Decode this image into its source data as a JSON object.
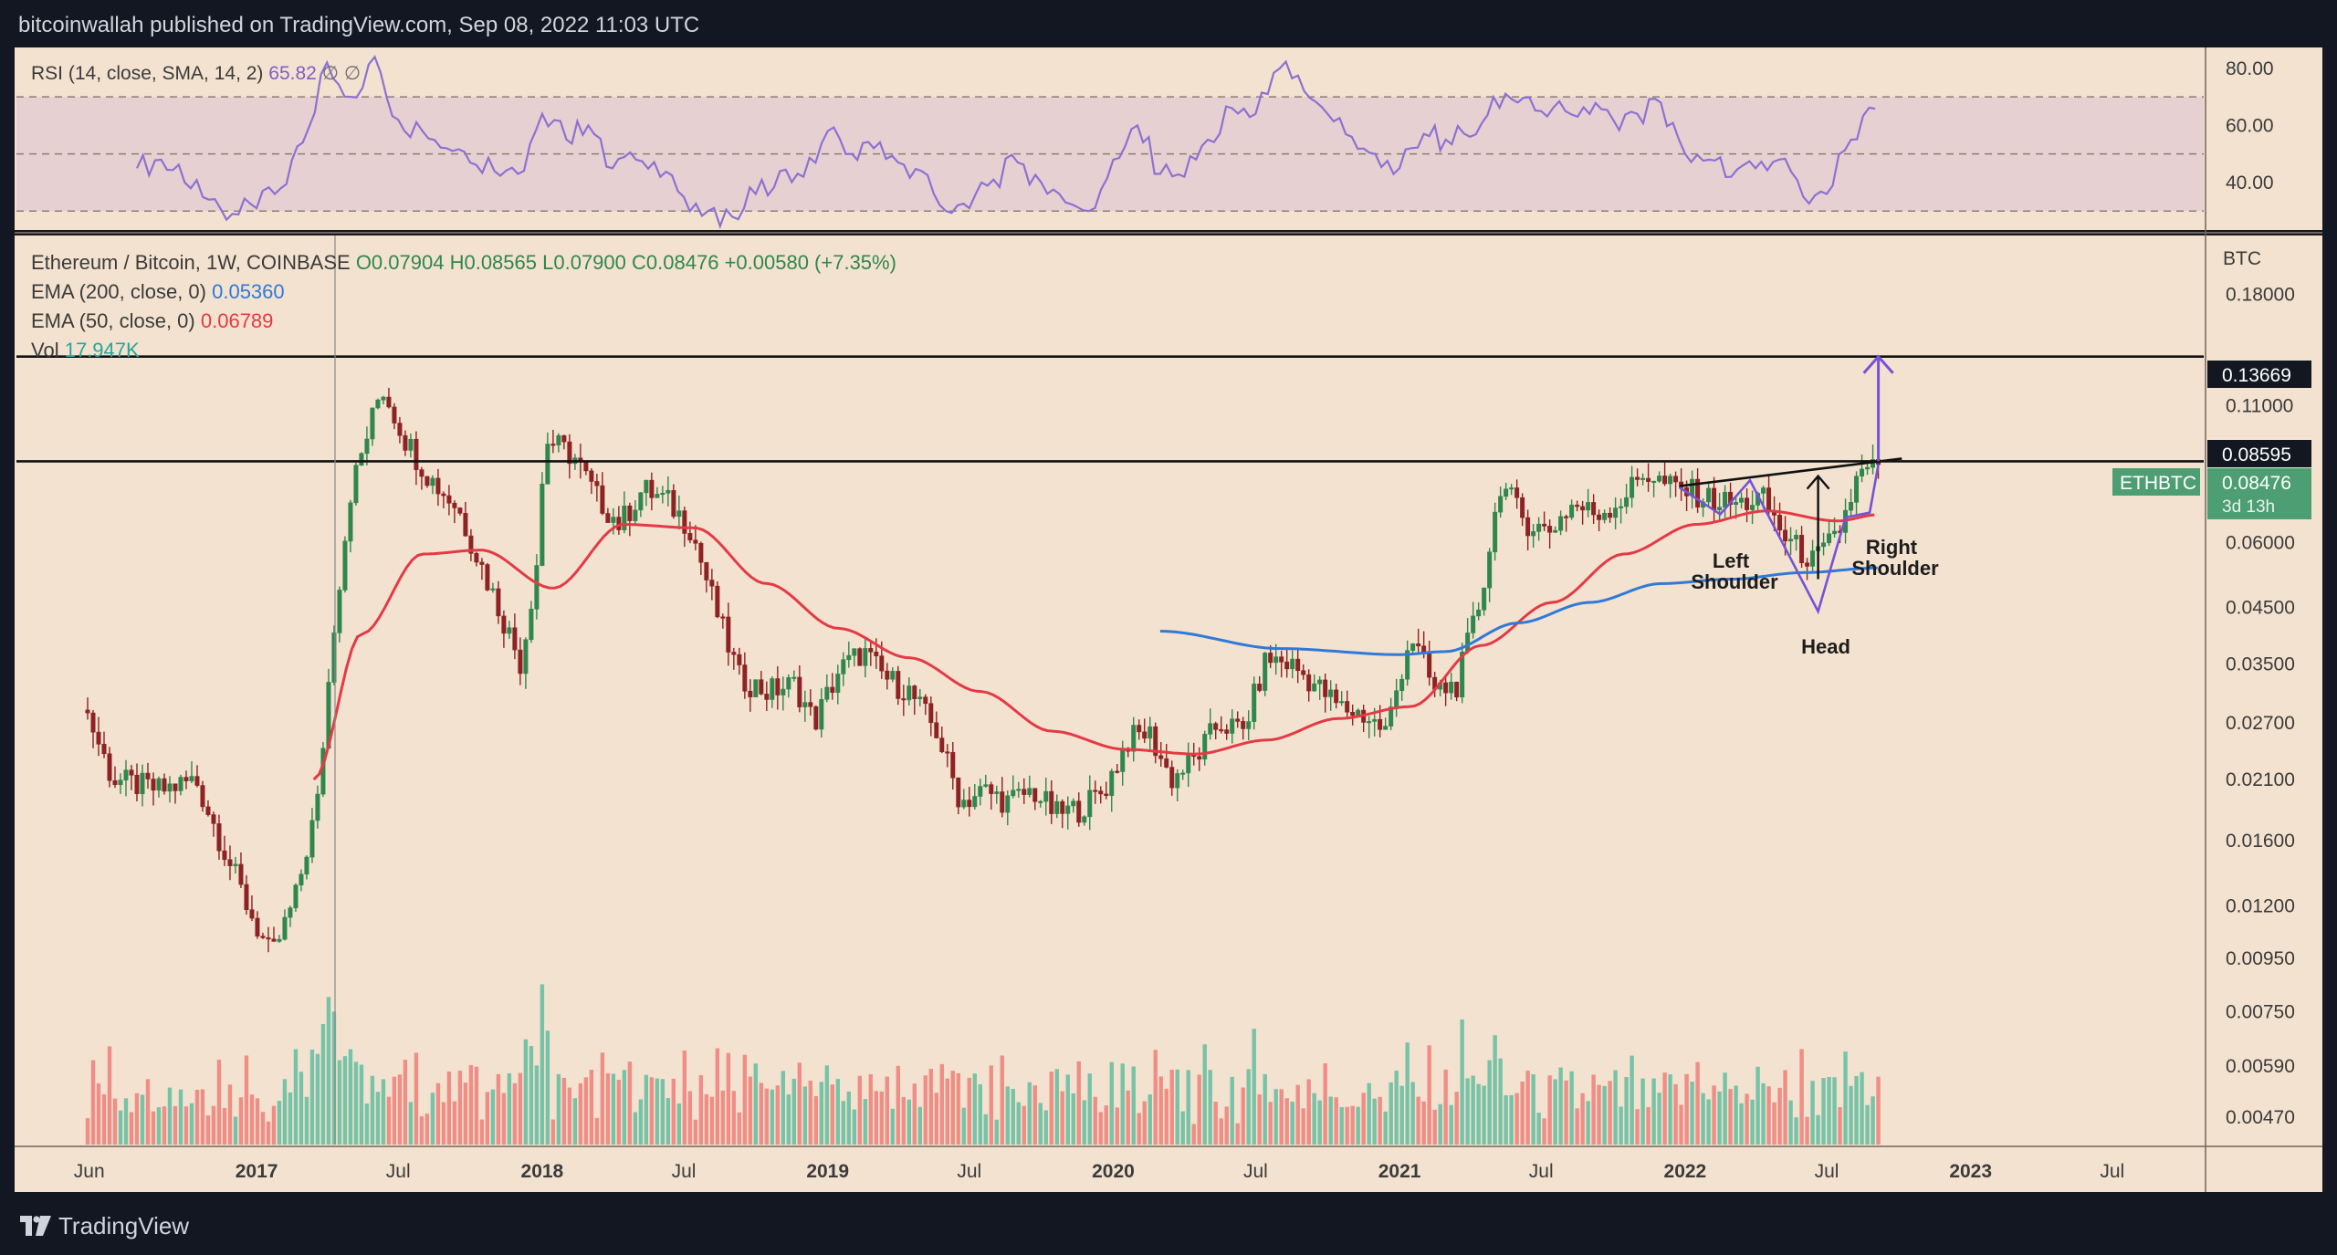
{
  "publisher": "bitcoinwallah published on TradingView.com, Sep 08, 2022 11:03 UTC",
  "footer": {
    "brand": "TradingView",
    "icon": "tradingview-logo-icon"
  },
  "colors": {
    "chart_bg": "#f3e2cf",
    "frame": "#131722",
    "candle_up": "#30874d",
    "candle_down": "#8e2323",
    "vol_up": "#77c3a8",
    "vol_down": "#ef8e86",
    "ema200": "#2f7ad8",
    "ema50": "#e43a46",
    "rsi_line": "#8b72d2",
    "rsi_band": "#e7d0d1",
    "pattern": "#7552d6",
    "tag_green": "#4e9e73"
  },
  "chart_data": [
    {
      "type": "line",
      "panel": "RSI",
      "legend": {
        "title": "RSI (14, close, SMA, 14, 2)",
        "value": "65.82",
        "extra": "∅ ∅"
      },
      "y_ticks": [
        "80.00",
        "60.00",
        "40.00"
      ],
      "ylim": [
        24,
        86
      ],
      "band": [
        30,
        70
      ],
      "grid": false,
      "series": [
        {
          "x": [
            "2016-08-01",
            "2016-09-01",
            "2016-10-01",
            "2016-11-01",
            "2016-12-01",
            "2017-01-01",
            "2017-02-01",
            "2017-03-01",
            "2017-04-01",
            "2017-05-01",
            "2017-06-01",
            "2017-07-01",
            "2017-08-01",
            "2017-09-01",
            "2017-10-01",
            "2017-11-01",
            "2017-12-01",
            "2018-01-01",
            "2018-02-01",
            "2018-03-01",
            "2018-04-01",
            "2018-05-01",
            "2018-06-01",
            "2018-07-01",
            "2018-08-01",
            "2018-09-01",
            "2018-10-01",
            "2018-11-01",
            "2018-12-01",
            "2019-01-01",
            "2019-02-01",
            "2019-03-01",
            "2019-04-01",
            "2019-05-01",
            "2019-06-01",
            "2019-07-01",
            "2019-08-01",
            "2019-09-01",
            "2019-10-01",
            "2019-11-01",
            "2019-12-01",
            "2020-01-01",
            "2020-02-01",
            "2020-03-01",
            "2020-04-01",
            "2020-05-01",
            "2020-06-01",
            "2020-07-01",
            "2020-08-01",
            "2020-09-01",
            "2020-10-01",
            "2020-11-01",
            "2020-12-01",
            "2021-01-01",
            "2021-02-01",
            "2021-03-01",
            "2021-04-01",
            "2021-05-01",
            "2021-06-01",
            "2021-07-01",
            "2021-08-01",
            "2021-09-01",
            "2021-10-01",
            "2021-11-01",
            "2021-12-01",
            "2022-01-01",
            "2022-02-01",
            "2022-03-01",
            "2022-04-01",
            "2022-05-01",
            "2022-06-01",
            "2022-07-01",
            "2022-08-01",
            "2022-09-01"
          ],
          "values": [
            45,
            48,
            40,
            34,
            29,
            31,
            38,
            54,
            82,
            70,
            84,
            62,
            58,
            52,
            47,
            44,
            43,
            64,
            55,
            60,
            45,
            48,
            42,
            35,
            30,
            28,
            36,
            44,
            42,
            58,
            50,
            52,
            47,
            44,
            30,
            31,
            41,
            47,
            40,
            33,
            30,
            48,
            60,
            43,
            42,
            55,
            66,
            64,
            80,
            72,
            64,
            56,
            50,
            45,
            57,
            55,
            56,
            70,
            68,
            65,
            65,
            64,
            62,
            64,
            68,
            50,
            48,
            42,
            45,
            48,
            35,
            36,
            55,
            65.82
          ]
        }
      ]
    },
    {
      "type": "candlestick",
      "panel": "Price",
      "title": "Ethereum / Bitcoin, 1W, COINBASE",
      "ohlc_label": {
        "open": "O0.07904",
        "high": "H0.08565",
        "low": "L0.07900",
        "close": "C0.08476",
        "change": "+0.00580 (+7.35%)"
      },
      "scale": "log",
      "ylabel": "BTC",
      "ylim": [
        0.0042,
        0.23
      ],
      "y_ticks": [
        "0.18000",
        "0.11000",
        "0.06000",
        "0.04500",
        "0.03500",
        "0.02700",
        "0.02100",
        "0.01600",
        "0.01200",
        "0.00950",
        "0.00750",
        "0.00590",
        "0.00470"
      ],
      "x_ticks": [
        "Jun",
        "2017",
        "Jul",
        "2018",
        "Jul",
        "2019",
        "Jul",
        "2020",
        "Jul",
        "2021",
        "Jul",
        "2022",
        "Jul",
        "2023",
        "Jul"
      ],
      "bold_x_ticks": [
        "2017",
        "2018",
        "2019",
        "2020",
        "2021",
        "2022",
        "2023"
      ],
      "legend_placement": "top-left",
      "indicators": [
        {
          "name": "EMA (200, close, 0)",
          "value": "0.05360",
          "color": "#2f7ad8"
        },
        {
          "name": "EMA (50, close, 0)",
          "value": "0.06789",
          "color": "#e43a46"
        },
        {
          "name": "Vol",
          "value": "17.947K",
          "color": "#26a69a"
        }
      ],
      "price_tags": [
        {
          "label": "0.13669",
          "style": "horizontal-line"
        },
        {
          "label": "0.08595",
          "style": "horizontal-line"
        },
        {
          "label": "0.08476",
          "symbol": "ETHBTC",
          "countdown": "3d 13h",
          "style": "last-price"
        }
      ],
      "horizontal_lines": [
        0.13669,
        0.08595
      ],
      "annotations": [
        "Left Shoulder",
        "Head",
        "Right Shoulder"
      ],
      "close_path": {
        "x": [
          "2016-05-30",
          "2016-07-01",
          "2016-09-01",
          "2016-10-15",
          "2016-12-20",
          "2017-01-20",
          "2017-02-20",
          "2017-03-20",
          "2017-04-10",
          "2017-05-01",
          "2017-06-10",
          "2017-07-10",
          "2017-08-10",
          "2017-09-15",
          "2017-10-20",
          "2017-11-20",
          "2017-12-05",
          "2017-12-25",
          "2018-01-05",
          "2018-02-10",
          "2018-03-10",
          "2018-04-10",
          "2018-05-10",
          "2018-06-10",
          "2018-07-10",
          "2018-08-10",
          "2018-09-10",
          "2018-10-15",
          "2018-11-20",
          "2018-12-15",
          "2019-01-15",
          "2019-02-15",
          "2019-03-15",
          "2019-04-15",
          "2019-05-20",
          "2019-06-20",
          "2019-07-20",
          "2019-08-20",
          "2019-09-20",
          "2019-10-20",
          "2019-11-20",
          "2019-12-20",
          "2020-01-20",
          "2020-02-15",
          "2020-03-15",
          "2020-04-15",
          "2020-05-15",
          "2020-06-15",
          "2020-07-15",
          "2020-08-15",
          "2020-09-15",
          "2020-10-15",
          "2020-11-15",
          "2020-12-15",
          "2021-01-15",
          "2021-02-15",
          "2021-03-15",
          "2021-04-15",
          "2021-05-10",
          "2021-06-10",
          "2021-07-10",
          "2021-08-10",
          "2021-09-10",
          "2021-10-10",
          "2021-11-10",
          "2021-12-10",
          "2022-01-10",
          "2022-02-10",
          "2022-03-10",
          "2022-04-10",
          "2022-05-10",
          "2022-06-15",
          "2022-07-15",
          "2022-08-10",
          "2022-09-05"
        ],
        "values": [
          0.028,
          0.021,
          0.02,
          0.021,
          0.012,
          0.0095,
          0.0125,
          0.019,
          0.042,
          0.075,
          0.12,
          0.095,
          0.08,
          0.07,
          0.052,
          0.04,
          0.035,
          0.055,
          0.095,
          0.088,
          0.074,
          0.065,
          0.076,
          0.072,
          0.064,
          0.045,
          0.033,
          0.031,
          0.032,
          0.027,
          0.034,
          0.037,
          0.033,
          0.031,
          0.026,
          0.019,
          0.02,
          0.019,
          0.02,
          0.018,
          0.0185,
          0.02,
          0.025,
          0.026,
          0.021,
          0.023,
          0.027,
          0.026,
          0.036,
          0.035,
          0.032,
          0.029,
          0.028,
          0.026,
          0.04,
          0.031,
          0.032,
          0.047,
          0.078,
          0.066,
          0.063,
          0.071,
          0.068,
          0.072,
          0.082,
          0.077,
          0.075,
          0.072,
          0.071,
          0.073,
          0.061,
          0.055,
          0.062,
          0.08,
          0.08476
        ]
      },
      "ema200": {
        "x": [
          "2020-03-01",
          "2020-08-01",
          "2021-01-01",
          "2021-03-01",
          "2021-06-01",
          "2021-09-01",
          "2021-12-01",
          "2022-03-01",
          "2022-06-01",
          "2022-09-05"
        ],
        "values": [
          0.0405,
          0.0375,
          0.0365,
          0.037,
          0.042,
          0.046,
          0.05,
          0.051,
          0.0525,
          0.0536
        ]
      },
      "ema50": {
        "x": [
          "2017-03-15",
          "2017-05-15",
          "2017-08-01",
          "2017-10-15",
          "2018-01-15",
          "2018-04-15",
          "2018-07-15",
          "2018-10-15",
          "2019-01-15",
          "2019-04-15",
          "2019-07-15",
          "2019-10-15",
          "2020-01-15",
          "2020-04-15",
          "2020-07-15",
          "2020-10-15",
          "2021-01-15",
          "2021-04-15",
          "2021-07-15",
          "2021-10-15",
          "2022-01-15",
          "2022-04-15",
          "2022-07-15",
          "2022-09-05"
        ],
        "values": [
          0.021,
          0.04,
          0.057,
          0.058,
          0.049,
          0.065,
          0.064,
          0.05,
          0.041,
          0.036,
          0.031,
          0.026,
          0.024,
          0.0235,
          0.025,
          0.0275,
          0.029,
          0.038,
          0.046,
          0.057,
          0.065,
          0.069,
          0.066,
          0.06789
        ]
      }
    },
    {
      "type": "bar",
      "panel": "Volume",
      "legend": {
        "name": "Vol",
        "value": "17.947K"
      },
      "note": "relative weekly volume bars, coloured by candle direction"
    }
  ]
}
